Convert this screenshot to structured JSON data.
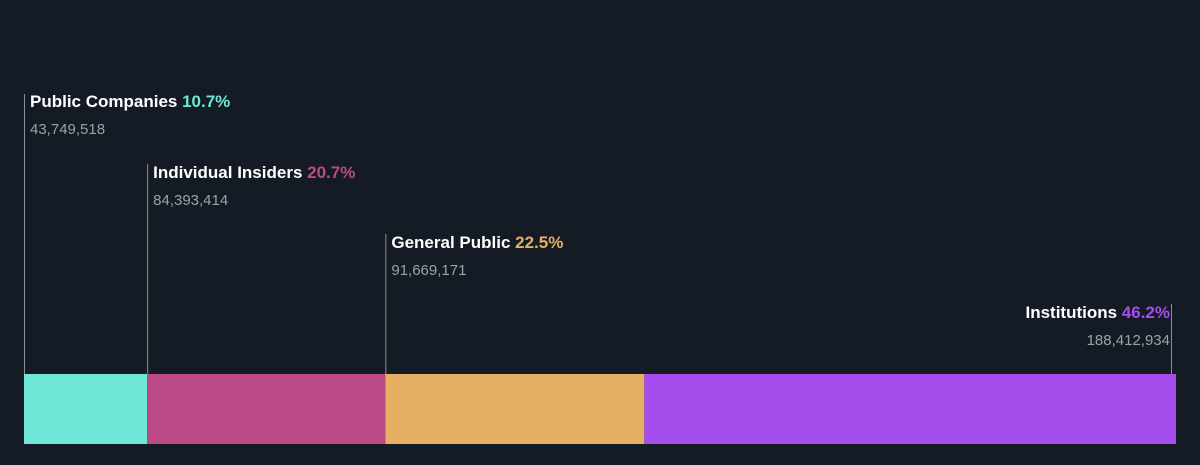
{
  "chart_data": {
    "type": "bar",
    "orientation": "horizontal-stacked",
    "title": "",
    "xlabel": "",
    "ylabel": "",
    "grid": false,
    "legend": "none",
    "categories": [
      "Public Companies",
      "Individual Insiders",
      "General Public",
      "Institutions"
    ],
    "series": [
      {
        "name": "Public Companies",
        "percent": 10.7,
        "percent_label": "10.7%",
        "shares": 43749518,
        "shares_label": "43,749,518",
        "color": "#6ee7d8"
      },
      {
        "name": "Individual Insiders",
        "percent": 20.7,
        "percent_label": "20.7%",
        "shares": 84393414,
        "shares_label": "84,393,414",
        "color": "#bc4a87"
      },
      {
        "name": "General Public",
        "percent": 22.5,
        "percent_label": "22.5%",
        "shares": 91669171,
        "shares_label": "91,669,171",
        "color": "#e5b064"
      },
      {
        "name": "Institutions",
        "percent": 46.2,
        "percent_label": "46.2%",
        "shares": 188412934,
        "shares_label": "188,412,934",
        "color": "#a64ded"
      }
    ]
  }
}
